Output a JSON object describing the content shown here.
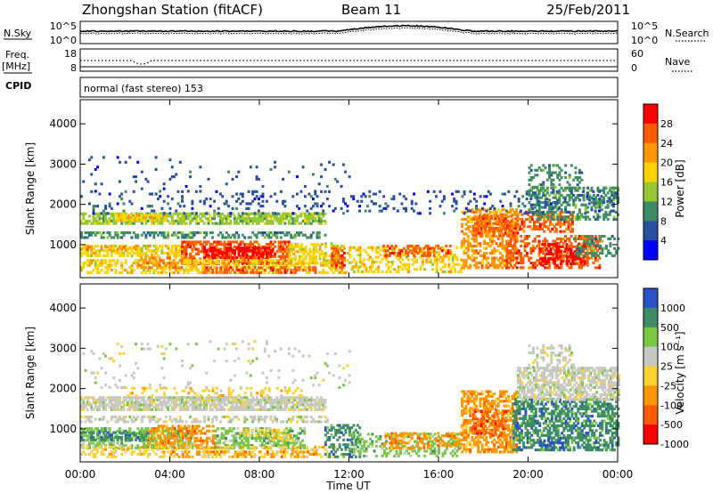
{
  "header": {
    "station": "Zhongshan Station (fitACF)",
    "beam": "Beam 11",
    "date": "25/Feb/2011"
  },
  "summary_panels": {
    "nsky_label": "N.Sky",
    "nsky_ticks": [
      "10^5",
      "10^0"
    ],
    "nsearch_label": "N.Search",
    "nsearch_ticks": [
      "10^5",
      "10^0"
    ],
    "freq_label_line1": "Freq.",
    "freq_label_line2": "[MHz]",
    "freq_ticks": [
      "18",
      "8"
    ],
    "nave_label": "Nave",
    "nave_ticks": [
      "60",
      "0"
    ],
    "cpid_label": "CPID",
    "cpid_text": "normal (fast stereo) 153"
  },
  "chart_data": [
    {
      "type": "heatmap",
      "name": "power-panel",
      "ylabel": "Slant Range [km]",
      "yticks": [
        1000,
        2000,
        3000,
        4000
      ],
      "ylim": [
        180,
        4600
      ],
      "xticks": [
        "00:00",
        "04:00",
        "08:00",
        "12:00",
        "16:00",
        "20:00",
        "00:00"
      ],
      "xlim_hours": [
        0,
        24
      ],
      "colorbar": {
        "label": "Power [dB]",
        "ticks": [
          "28",
          "24",
          "20",
          "16",
          "12",
          "8",
          "4"
        ],
        "colors": [
          "#ff0000",
          "#ff5a00",
          "#ff9600",
          "#ffd200",
          "#96c832",
          "#3c8c64",
          "#2850a0",
          "#0000ff"
        ]
      },
      "bands": [
        {
          "t0": 0,
          "t1": 10.9,
          "r0": 1500,
          "r1": 1750,
          "c": 4,
          "d": 0.7
        },
        {
          "t0": 1.5,
          "t1": 3.8,
          "r0": 1580,
          "r1": 1720,
          "c": 3,
          "d": 0.75
        },
        {
          "t0": 0,
          "t1": 10.9,
          "r0": 1150,
          "r1": 1320,
          "c": 5,
          "d": 0.5
        },
        {
          "t0": 0,
          "t1": 4.5,
          "r0": 700,
          "r1": 1000,
          "c": 3,
          "d": 0.65
        },
        {
          "t0": 0,
          "t1": 2.5,
          "r0": 850,
          "r1": 950,
          "c": 2,
          "d": 0.6
        },
        {
          "t0": 4.5,
          "t1": 9.3,
          "r0": 500,
          "r1": 1100,
          "c": 1,
          "d": 0.7
        },
        {
          "t0": 5.5,
          "t1": 8.5,
          "r0": 650,
          "r1": 950,
          "c": 0,
          "d": 0.6
        },
        {
          "t0": 9.3,
          "t1": 11,
          "r0": 500,
          "r1": 1000,
          "c": 3,
          "d": 0.55
        },
        {
          "t0": 0,
          "t1": 11.5,
          "r0": 280,
          "r1": 600,
          "c": 3,
          "d": 0.5
        },
        {
          "t0": 2.5,
          "t1": 4.5,
          "r0": 400,
          "r1": 650,
          "c": 2,
          "d": 0.5
        },
        {
          "t0": 5.5,
          "t1": 10.5,
          "r0": 280,
          "r1": 420,
          "c": 1,
          "d": 0.45
        },
        {
          "t0": 10.9,
          "t1": 12,
          "r0": 280,
          "r1": 1050,
          "c": 3,
          "d": 0.4
        },
        {
          "t0": 11.2,
          "t1": 11.8,
          "r0": 400,
          "r1": 900,
          "c": 1,
          "d": 0.55
        },
        {
          "t0": 12,
          "t1": 17,
          "r0": 300,
          "r1": 950,
          "c": 3,
          "d": 0.4
        },
        {
          "t0": 13.5,
          "t1": 16.5,
          "r0": 700,
          "r1": 950,
          "c": 1,
          "d": 0.45
        },
        {
          "t0": 17,
          "t1": 19.5,
          "r0": 400,
          "r1": 1900,
          "c": 2,
          "d": 0.5
        },
        {
          "t0": 17.5,
          "t1": 19.5,
          "r0": 1200,
          "r1": 1700,
          "c": 1,
          "d": 0.55
        },
        {
          "t0": 19.5,
          "t1": 22,
          "r0": 1300,
          "r1": 1800,
          "c": 1,
          "d": 0.45
        },
        {
          "t0": 19,
          "t1": 23.2,
          "r0": 400,
          "r1": 1200,
          "c": 1,
          "d": 0.5
        },
        {
          "t0": 20.5,
          "t1": 22.5,
          "r0": 500,
          "r1": 1000,
          "c": 0,
          "d": 0.55
        },
        {
          "t0": 20,
          "t1": 24,
          "r0": 1600,
          "r1": 2400,
          "c": 5,
          "d": 0.5
        },
        {
          "t0": 20,
          "t1": 22.5,
          "r0": 2400,
          "r1": 3000,
          "c": 5,
          "d": 0.25
        },
        {
          "t0": 22,
          "t1": 24,
          "r0": 700,
          "r1": 1200,
          "c": 5,
          "d": 0.4
        },
        {
          "t0": 0,
          "t1": 24,
          "r0": 1750,
          "r1": 2300,
          "c": 6,
          "d": 0.12
        },
        {
          "t0": 0,
          "t1": 12,
          "r0": 2300,
          "r1": 3200,
          "c": 6,
          "d": 0.04
        }
      ]
    },
    {
      "type": "heatmap",
      "name": "velocity-panel",
      "ylabel": "Slant Range [km]",
      "yticks": [
        1000,
        2000,
        3000,
        4000
      ],
      "ylim": [
        180,
        4600
      ],
      "xticks": [
        "00:00",
        "04:00",
        "08:00",
        "12:00",
        "16:00",
        "20:00",
        "00:00"
      ],
      "xlim_hours": [
        0,
        24
      ],
      "xlabel": "Time UT",
      "colorbar": {
        "label": "Velocity [m s⁻¹]",
        "ticks": [
          "1000",
          "500",
          "100",
          "25",
          "-25",
          "-100",
          "-500",
          "-1000"
        ],
        "colors": [
          "#2850c8",
          "#3c8c64",
          "#78c846",
          "#c8c8c0",
          "#ffd232",
          "#ff9600",
          "#ff5a00",
          "#ff0000"
        ]
      },
      "bands": [
        {
          "t0": 0,
          "t1": 10.9,
          "r0": 1450,
          "r1": 1800,
          "c": 3,
          "d": 0.8
        },
        {
          "t0": 2,
          "t1": 10,
          "r0": 1800,
          "r1": 2000,
          "c": 4,
          "d": 0.25
        },
        {
          "t0": 0,
          "t1": 11,
          "r0": 1150,
          "r1": 1300,
          "c": 3,
          "d": 0.45
        },
        {
          "t0": 0,
          "t1": 5,
          "r0": 500,
          "r1": 1000,
          "c": 2,
          "d": 0.6
        },
        {
          "t0": 0,
          "t1": 3,
          "r0": 700,
          "r1": 900,
          "c": 1,
          "d": 0.45
        },
        {
          "t0": 3,
          "t1": 6,
          "r0": 500,
          "r1": 1100,
          "c": 5,
          "d": 0.5
        },
        {
          "t0": 6,
          "t1": 10,
          "r0": 500,
          "r1": 1000,
          "c": 2,
          "d": 0.55
        },
        {
          "t0": 7,
          "t1": 9.5,
          "r0": 700,
          "r1": 950,
          "c": 4,
          "d": 0.3
        },
        {
          "t0": 0,
          "t1": 11.5,
          "r0": 280,
          "r1": 550,
          "c": 4,
          "d": 0.35
        },
        {
          "t0": 4,
          "t1": 10.5,
          "r0": 280,
          "r1": 450,
          "c": 5,
          "d": 0.3
        },
        {
          "t0": 10.9,
          "t1": 12.5,
          "r0": 280,
          "r1": 1100,
          "c": 1,
          "d": 0.45
        },
        {
          "t0": 12,
          "t1": 17,
          "r0": 300,
          "r1": 900,
          "c": 2,
          "d": 0.4
        },
        {
          "t0": 13.5,
          "t1": 17,
          "r0": 500,
          "r1": 900,
          "c": 5,
          "d": 0.4
        },
        {
          "t0": 17,
          "t1": 19.5,
          "r0": 400,
          "r1": 1950,
          "c": 5,
          "d": 0.6
        },
        {
          "t0": 17.5,
          "t1": 19,
          "r0": 800,
          "r1": 1500,
          "c": 6,
          "d": 0.35
        },
        {
          "t0": 19.3,
          "t1": 24,
          "r0": 450,
          "r1": 1750,
          "c": 1,
          "d": 0.6
        },
        {
          "t0": 20.5,
          "t1": 21.5,
          "r0": 500,
          "r1": 800,
          "c": 0,
          "d": 0.4
        },
        {
          "t0": 19.5,
          "t1": 24,
          "r0": 1700,
          "r1": 2500,
          "c": 3,
          "d": 0.65
        },
        {
          "t0": 20,
          "t1": 22,
          "r0": 2500,
          "r1": 3100,
          "c": 3,
          "d": 0.35
        },
        {
          "t0": 0,
          "t1": 12,
          "r0": 2000,
          "r1": 3200,
          "c": 3,
          "d": 0.05
        }
      ]
    }
  ]
}
